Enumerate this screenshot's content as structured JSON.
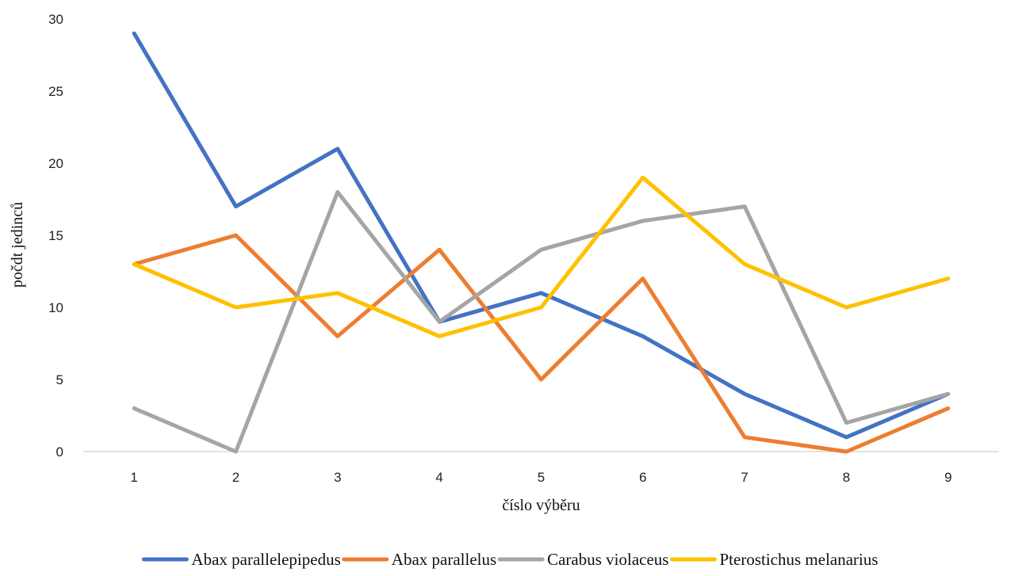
{
  "chart_data": {
    "type": "line",
    "title": "",
    "xlabel": "číslo výběru",
    "ylabel": "počdt jedinců",
    "categories": [
      "1",
      "2",
      "3",
      "4",
      "5",
      "6",
      "7",
      "8",
      "9"
    ],
    "ylim": [
      0,
      30
    ],
    "yticks": [
      0,
      5,
      10,
      15,
      20,
      25,
      30
    ],
    "grid": false,
    "legend_position": "bottom",
    "series": [
      {
        "name": "Abax parallelepipedus",
        "color": "#4472C4",
        "values": [
          29,
          17,
          21,
          9,
          11,
          8,
          4,
          1,
          4
        ]
      },
      {
        "name": "Abax parallelus",
        "color": "#ED7D31",
        "values": [
          13,
          15,
          8,
          14,
          5,
          12,
          1,
          0,
          3
        ]
      },
      {
        "name": "Carabus violaceus",
        "color": "#A5A5A5",
        "values": [
          3,
          0,
          18,
          9,
          14,
          16,
          17,
          2,
          4
        ]
      },
      {
        "name": "Pterostichus melanarius",
        "color": "#FFC000",
        "values": [
          13,
          10,
          11,
          8,
          10,
          19,
          13,
          10,
          12
        ]
      }
    ]
  }
}
